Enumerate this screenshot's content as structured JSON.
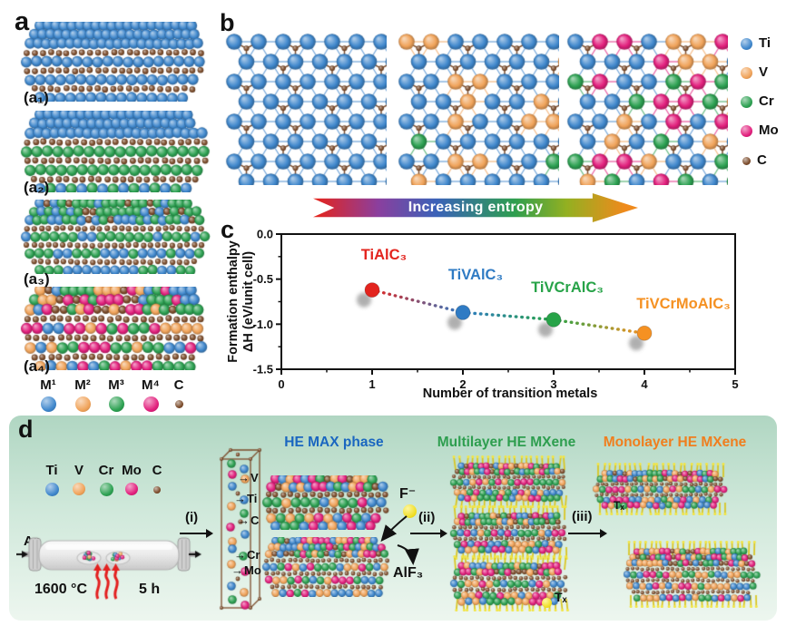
{
  "colors": {
    "Ti": "#3f87cc",
    "V": "#f0a35a",
    "Cr": "#2da152",
    "Mo": "#e2207d",
    "C": "#7b4b2a"
  },
  "icons": {
    "arrow_right": "→"
  },
  "panel_a": {
    "label": "a",
    "sublabels": [
      "(a₁)",
      "(a₂)",
      "(a₃)",
      "(a₄)"
    ],
    "legend": [
      {
        "label": "M¹",
        "color": "Ti"
      },
      {
        "label": "M²",
        "color": "V"
      },
      {
        "label": "M³",
        "color": "Cr"
      },
      {
        "label": "M⁴",
        "color": "Mo"
      },
      {
        "label": "C",
        "color": "C"
      }
    ]
  },
  "panel_b": {
    "label": "b",
    "legend": [
      {
        "label": "Ti",
        "color": "Ti"
      },
      {
        "label": "V",
        "color": "V"
      },
      {
        "label": "Cr",
        "color": "Cr"
      },
      {
        "label": "Mo",
        "color": "Mo"
      },
      {
        "label": "C",
        "color": "C"
      }
    ],
    "entropy_arrow_text": "Increasing entropy"
  },
  "panel_c": {
    "label": "c"
  },
  "chart_data": {
    "type": "scatter",
    "title": "",
    "xlabel": "Number of transition metals",
    "ylabel_lines": [
      "Formation enthalpy",
      "ΔH (eV/unit cell)"
    ],
    "xlim": [
      0,
      5
    ],
    "ylim": [
      -1.5,
      0
    ],
    "xticks": [
      0,
      1,
      2,
      3,
      4,
      5
    ],
    "yticks": [
      {
        "v": 0,
        "label": "0.0"
      },
      {
        "v": -0.5,
        "label": "-0.5"
      },
      {
        "v": -1,
        "label": "-1.0"
      },
      {
        "v": -1.5,
        "label": "-1.5"
      }
    ],
    "minor_xticks": [
      0.5,
      1.5,
      2.5,
      3.5,
      4.5
    ],
    "minor_yticks": [
      -0.25,
      -0.75,
      -1.25
    ],
    "grid": false,
    "line_style": "dotted",
    "points": [
      {
        "x": 1,
        "y": -0.62,
        "label": "TiAlC₃",
        "color": "#e3241e"
      },
      {
        "x": 2,
        "y": -0.87,
        "label": "TiVAlC₃",
        "color": "#2f7bc4"
      },
      {
        "x": 3,
        "y": -0.95,
        "label": "TiVCrAlC₃",
        "color": "#27a348"
      },
      {
        "x": 4,
        "y": -1.1,
        "label": "TiVCrMoAlC₃",
        "color": "#f59122"
      }
    ]
  },
  "panel_d": {
    "label": "d",
    "legend": [
      {
        "label": "Ti",
        "color": "Ti"
      },
      {
        "label": "V",
        "color": "V"
      },
      {
        "label": "Cr",
        "color": "Cr"
      },
      {
        "label": "Mo",
        "color": "Mo"
      },
      {
        "label": "C",
        "color": "C"
      }
    ],
    "furnace": {
      "gas_label": "Ar",
      "temperature": "1600 °C",
      "duration": "5 h"
    },
    "step_labels": [
      "(i)",
      "(ii)",
      "(iii)"
    ],
    "unit_cell_atom_labels": [
      "V",
      "Ti",
      "C",
      "Cr",
      "Mo"
    ],
    "stage_titles": [
      {
        "text": "HE MAX phase",
        "color": "#1a66c0"
      },
      {
        "text": "Multilayer HE MXene",
        "color": "#2e9e4f"
      },
      {
        "text": "Monolayer HE MXene",
        "color": "#f07e1e"
      }
    ],
    "etchant_label": "F⁻",
    "byproduct_label": "AlF₃",
    "termination_label": "Tₓ"
  }
}
